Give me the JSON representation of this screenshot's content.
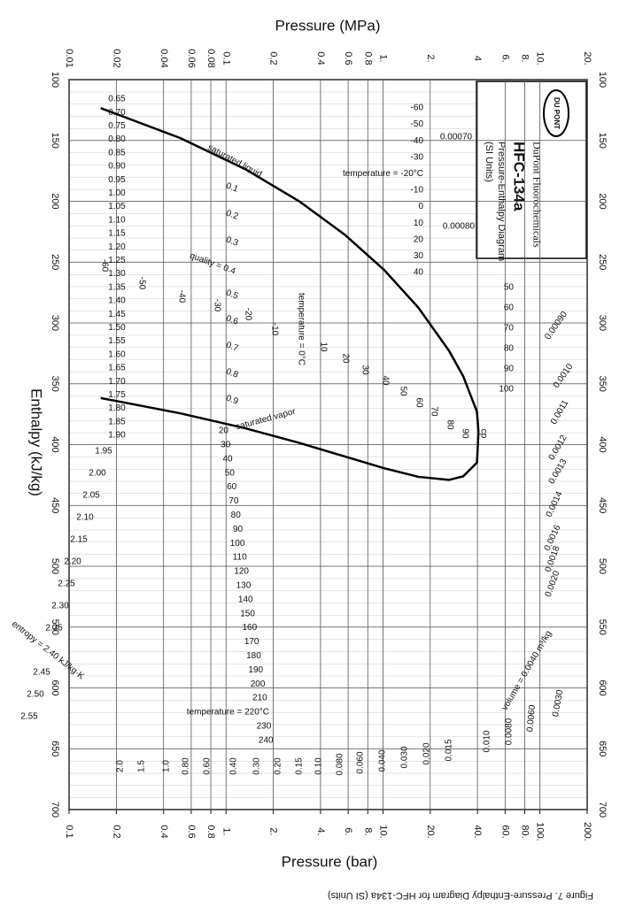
{
  "chart_data": {
    "type": "line",
    "title": "Pressure (MPa)",
    "x2_label": "Pressure (bar)",
    "y_label": "Enthalpy (kJ/kg)",
    "caption": "Figure 7. Pressure-Enthalpy Diagram for HFC-134a (SI Units)",
    "legend_box": {
      "logo": "DU PONT",
      "company": "DuPont Fluorochemicals",
      "product": "HFC-134a",
      "diagram": "Pressure-Enthalpy Diagram",
      "units": "(SI Units)"
    },
    "xscale": "log",
    "xlim": [
      0.01,
      20
    ],
    "xticks": [
      0.01,
      0.02,
      0.04,
      0.06,
      0.08,
      0.1,
      0.2,
      0.4,
      0.6,
      0.8,
      {
        "value": 1,
        "label": "1."
      },
      {
        "value": 2,
        "label": "2."
      },
      4,
      {
        "value": 6,
        "label": "6."
      },
      {
        "value": 8,
        "label": "8."
      },
      {
        "value": 10,
        "label": "10."
      },
      {
        "value": 20,
        "label": "20."
      }
    ],
    "x2lim": [
      0.1,
      200
    ],
    "x2ticks": [
      0.1,
      0.2,
      0.4,
      0.6,
      0.8,
      {
        "value": 1,
        "label": "1."
      },
      {
        "value": 2,
        "label": "2."
      },
      {
        "value": 4,
        "label": "4."
      },
      {
        "value": 6,
        "label": "6."
      },
      {
        "value": 8,
        "label": "8."
      },
      {
        "value": 10,
        "label": "10."
      },
      {
        "value": 20,
        "label": "20."
      },
      {
        "value": 40,
        "label": "40."
      },
      {
        "value": 60,
        "label": "60."
      },
      {
        "value": 80,
        "label": "80."
      },
      {
        "value": 100,
        "label": "100."
      },
      {
        "value": 200,
        "label": "200."
      }
    ],
    "ylim": [
      100,
      700
    ],
    "yinvert": true,
    "yticks": [
      100,
      150,
      200,
      250,
      300,
      350,
      400,
      450,
      500,
      550,
      600,
      650,
      700
    ],
    "grid": true,
    "x": [
      0.0159,
      0.0512,
      0.1327,
      0.2928,
      0.5717,
      1.0166,
      1.6818,
      2.6332,
      3.2442,
      3.972,
      4.059
    ],
    "series": [
      {
        "name": "saturated liquid",
        "color": "#000000",
        "values": [
          123.4,
          148.1,
          173.6,
          200,
          227.5,
          256.4,
          287.5,
          322.8,
          343.8,
          373,
          389.6
        ]
      },
      {
        "name": "saturated vapor",
        "color": "#000000",
        "values": [
          361.7,
          374.3,
          386.6,
          398.6,
          409.8,
          419.4,
          426.5,
          429,
          426.1,
          414.8,
          389.6
        ]
      }
    ],
    "critical_point_label": "cp",
    "entropy_labels": [
      "0.65",
      "0.70",
      "0.75",
      "0.80",
      "0.85",
      "0.90",
      "0.95",
      "1.00",
      "1.05",
      "1.10",
      "1.15",
      "1.20",
      "1.25",
      "1.30",
      "1.35",
      "1.40",
      "1.45",
      "1.50",
      "1.55",
      "1.60",
      "1.65",
      "1.70",
      "1.75",
      "1.80",
      "1.85",
      "1.90",
      "1.95",
      "2.00",
      "2.05",
      "2.10",
      "2.15",
      "2.20",
      "2.25",
      "2.30",
      "2.35",
      "entropy = 2.40 kJ/kg·K",
      "2.45",
      "2.50",
      "2.55"
    ],
    "saturation_temperature_labels": [
      "-60",
      "-50",
      "-40",
      "-30",
      "temperature = -20°C",
      "-10",
      "0",
      "10",
      "20",
      "30",
      "40",
      "50",
      "60",
      "70",
      "80",
      "90",
      "100"
    ],
    "liquid_temperature_labels": [
      "-60",
      "-50",
      "-40",
      "-30",
      "-20",
      "-10",
      "temperature = 0°C",
      "10",
      "20",
      "30",
      "40",
      "50",
      "60",
      "70",
      "80",
      "90"
    ],
    "superheat_temperature_labels": [
      "20",
      "30",
      "40",
      "50",
      "60",
      "70",
      "80",
      "90",
      "100",
      "110",
      "120",
      "130",
      "140",
      "150",
      "160",
      "170",
      "180",
      "190",
      "200",
      "210",
      "temperature = 220°C",
      "230",
      "240"
    ],
    "quality_labels": [
      "0.1",
      "0.2",
      "0.3",
      "quality = 0.4",
      "0.5",
      "0.6",
      "0.7",
      "0.8",
      "0.9"
    ],
    "volume_labels": [
      "0.00070",
      "0.00080",
      "0.00090",
      "0.0010",
      "0.0011",
      "0.0012",
      "0.0013",
      "0.0014",
      "0.0016",
      "0.0018",
      "0.0020",
      "0.0030",
      "volume = 0.0040 m³/kg",
      "0.0060",
      "0.0080",
      "0.010",
      "0.015",
      "0.020",
      "0.030",
      "0.040",
      "0.060",
      "0.080",
      "0.10",
      "0.15",
      "0.20",
      "0.30",
      "0.40",
      "0.60",
      "0.80",
      "1.0",
      "1.5",
      "2.0"
    ]
  }
}
